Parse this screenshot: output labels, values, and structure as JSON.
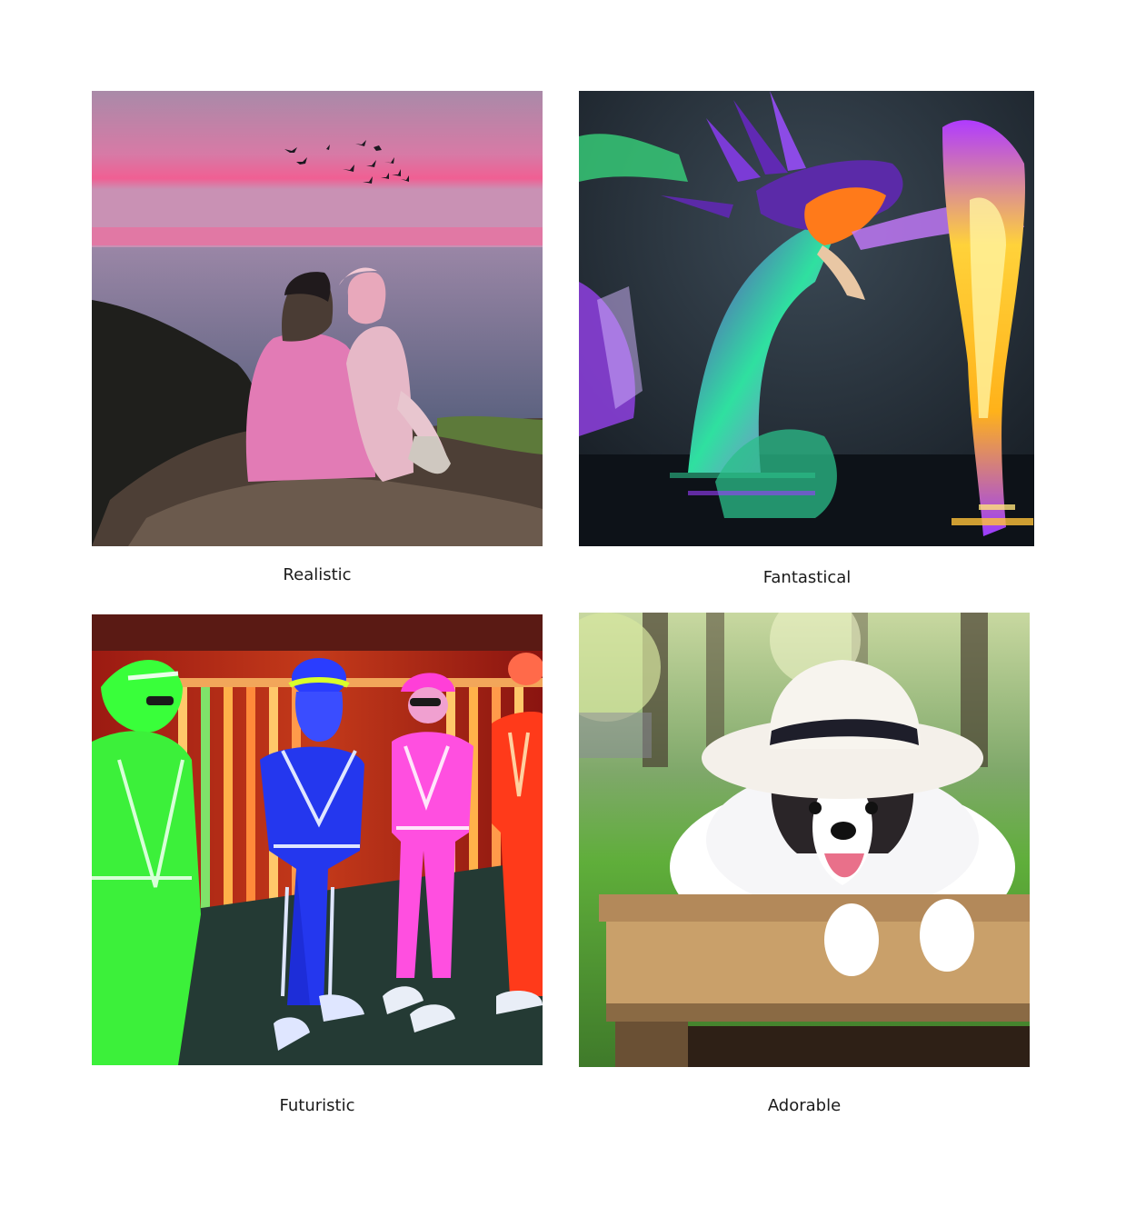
{
  "gallery": {
    "items": [
      {
        "caption": "Realistic",
        "icon": "couple-at-sunset-image"
      },
      {
        "caption": "Fantastical",
        "icon": "crystal-dragon-image"
      },
      {
        "caption": "Futuristic",
        "icon": "neon-suits-image"
      },
      {
        "caption": "Adorable",
        "icon": "puppy-in-hat-image"
      }
    ]
  },
  "colors": {
    "background": "#ffffff",
    "caption_text": "#1a1a1a",
    "sunset_pink": "#e26aa0",
    "dragon_purple": "#6a2bc4",
    "neon_green": "#39ff3a",
    "neon_blue": "#2a3dff",
    "neon_pink": "#ff3fd8",
    "neon_red": "#ff3a1a",
    "park_green": "#5fae3a"
  }
}
